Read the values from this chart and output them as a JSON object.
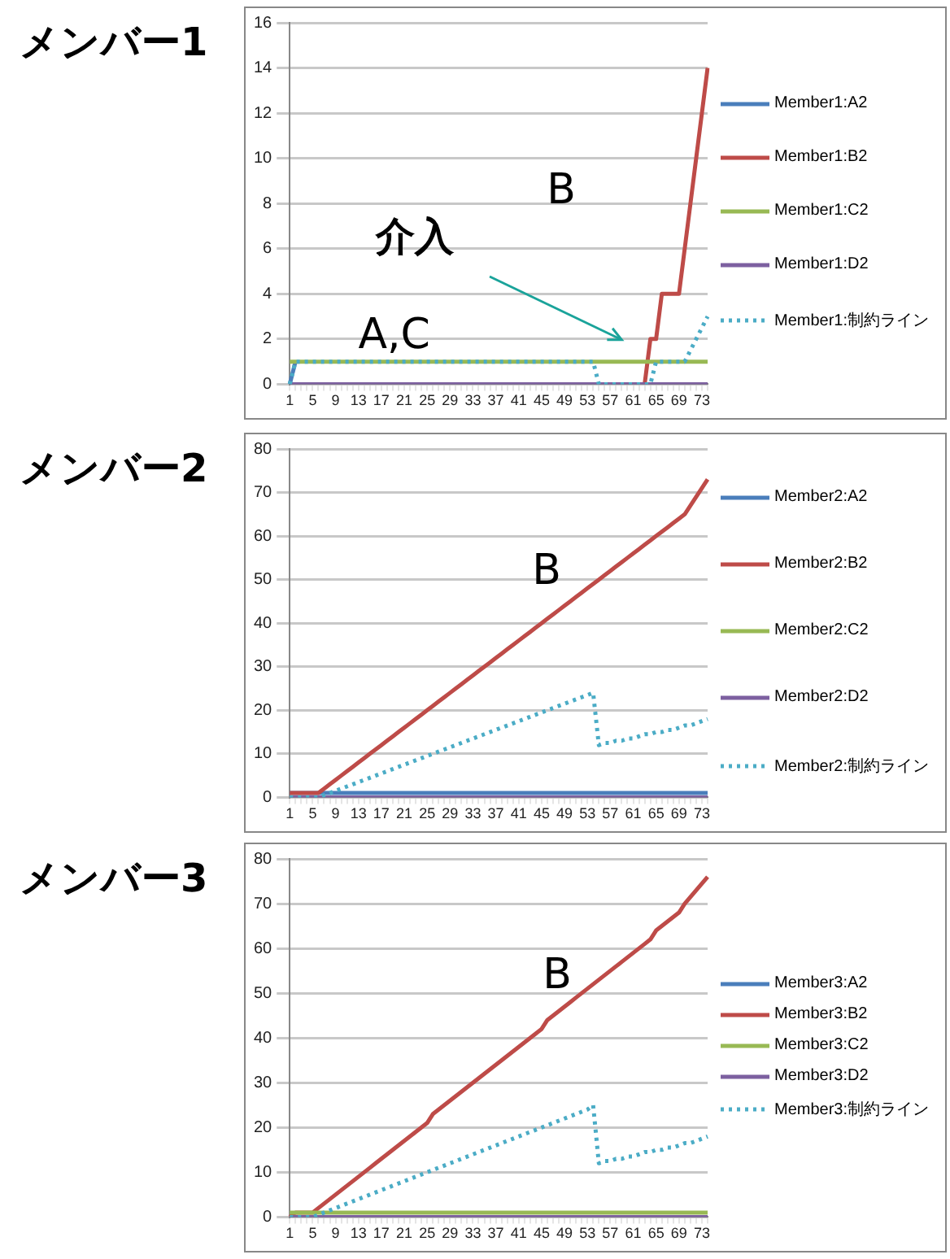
{
  "chart_data": [
    {
      "type": "line",
      "title": "メンバー1",
      "categories": [
        "1",
        null,
        null,
        null,
        "5",
        null,
        null,
        null,
        "9",
        null,
        null,
        null,
        "13",
        null,
        null,
        null,
        "17",
        null,
        null,
        null,
        "21",
        null,
        null,
        null,
        "25",
        null,
        null,
        null,
        "29",
        null,
        null,
        null,
        "33",
        null,
        null,
        null,
        "37",
        null,
        null,
        null,
        "41",
        null,
        null,
        null,
        "45",
        null,
        null,
        null,
        "49",
        null,
        null,
        null,
        "53",
        null,
        null,
        null,
        "57",
        null,
        null,
        null,
        "61",
        null,
        null,
        null,
        "65",
        null,
        null,
        null,
        "69",
        null,
        null,
        null,
        "73",
        null
      ],
      "series": [
        {
          "name": "Member1:A2",
          "color": "#4a7ebb",
          "values": [
            0,
            1,
            null,
            null,
            null,
            null,
            null,
            null,
            null,
            null,
            null,
            null,
            null,
            null,
            null,
            null,
            null,
            null,
            null,
            null,
            null,
            null,
            null,
            null,
            null,
            null,
            null,
            null,
            null,
            null,
            null,
            null,
            null,
            null,
            null,
            null,
            null,
            null,
            null,
            null,
            null,
            null,
            null,
            null,
            null,
            null,
            null,
            null,
            null,
            null,
            null,
            null,
            null,
            null,
            null,
            null,
            null,
            null,
            null,
            null,
            null,
            null,
            null,
            null,
            null,
            null,
            null,
            null,
            null,
            null,
            null,
            null,
            null,
            null
          ]
        },
        {
          "name": "Member1:B2",
          "color": "#be4b48",
          "values": [
            null,
            null,
            null,
            null,
            null,
            null,
            null,
            null,
            null,
            null,
            null,
            null,
            null,
            null,
            null,
            null,
            null,
            null,
            null,
            null,
            null,
            null,
            null,
            null,
            null,
            null,
            null,
            null,
            null,
            null,
            null,
            null,
            null,
            null,
            null,
            null,
            null,
            null,
            null,
            null,
            null,
            null,
            null,
            null,
            null,
            null,
            null,
            null,
            null,
            null,
            null,
            null,
            null,
            null,
            null,
            null,
            null,
            null,
            null,
            null,
            null,
            null,
            0,
            2,
            2,
            4,
            4,
            4,
            4,
            6,
            8,
            10,
            12,
            14
          ]
        },
        {
          "name": "Member1:C2",
          "color": "#98b954",
          "values": [
            1,
            1,
            1,
            1,
            1,
            1,
            1,
            1,
            1,
            1,
            1,
            1,
            1,
            1,
            1,
            1,
            1,
            1,
            1,
            1,
            1,
            1,
            1,
            1,
            1,
            1,
            1,
            1,
            1,
            1,
            1,
            1,
            1,
            1,
            1,
            1,
            1,
            1,
            1,
            1,
            1,
            1,
            1,
            1,
            1,
            1,
            1,
            1,
            1,
            1,
            1,
            1,
            1,
            1,
            1,
            1,
            1,
            1,
            1,
            1,
            1,
            1,
            1,
            1,
            1,
            1,
            1,
            1,
            1,
            1,
            1,
            1,
            1,
            1
          ]
        },
        {
          "name": "Member1:D2",
          "color": "#7d60a0",
          "values": [
            0,
            0,
            0,
            0,
            0,
            0,
            0,
            0,
            0,
            0,
            0,
            0,
            0,
            0,
            0,
            0,
            0,
            0,
            0,
            0,
            0,
            0,
            0,
            0,
            0,
            0,
            0,
            0,
            0,
            0,
            0,
            0,
            0,
            0,
            0,
            0,
            0,
            0,
            0,
            0,
            0,
            0,
            0,
            0,
            0,
            0,
            0,
            0,
            0,
            0,
            0,
            0,
            0,
            0,
            0,
            0,
            0,
            0,
            0,
            0,
            0,
            0,
            0,
            0,
            0,
            0,
            0,
            0,
            0,
            0,
            0,
            0,
            0,
            0
          ]
        },
        {
          "name": "Member1:制約ライン",
          "color": "#4bacc6",
          "line_style": "dotted",
          "values": [
            0,
            1,
            1,
            1,
            1,
            1,
            1,
            1,
            1,
            1,
            1,
            1,
            1,
            1,
            1,
            1,
            1,
            1,
            1,
            1,
            1,
            1,
            1,
            1,
            1,
            1,
            1,
            1,
            1,
            1,
            1,
            1,
            1,
            1,
            1,
            1,
            1,
            1,
            1,
            1,
            1,
            1,
            1,
            1,
            1,
            1,
            1,
            1,
            1,
            1,
            1,
            1,
            1,
            1,
            0,
            0,
            0,
            0,
            0,
            0,
            0,
            0,
            0,
            0,
            1,
            1,
            1,
            1,
            1,
            1,
            1.5,
            2,
            2.5,
            3
          ]
        }
      ],
      "ylim": [
        0,
        16
      ],
      "yticks": [
        0,
        2,
        4,
        6,
        8,
        10,
        12,
        14,
        16
      ],
      "grid": "y",
      "legend": "right",
      "marker": "none",
      "annotations": [
        "B",
        "介入",
        "A,C"
      ]
    },
    {
      "type": "line",
      "title": "メンバー2",
      "categories": [
        "1",
        null,
        null,
        null,
        "5",
        null,
        null,
        null,
        "9",
        null,
        null,
        null,
        "13",
        null,
        null,
        null,
        "17",
        null,
        null,
        null,
        "21",
        null,
        null,
        null,
        "25",
        null,
        null,
        null,
        "29",
        null,
        null,
        null,
        "33",
        null,
        null,
        null,
        "37",
        null,
        null,
        null,
        "41",
        null,
        null,
        null,
        "45",
        null,
        null,
        null,
        "49",
        null,
        null,
        null,
        "53",
        null,
        null,
        null,
        "57",
        null,
        null,
        null,
        "61",
        null,
        null,
        null,
        "65",
        null,
        null,
        null,
        "69",
        null,
        null,
        null,
        "73",
        null
      ],
      "series": [
        {
          "name": "Member2:A2",
          "color": "#4a7ebb",
          "values": [
            1,
            1,
            1,
            1,
            1,
            1,
            1,
            1,
            1,
            1,
            1,
            1,
            1,
            1,
            1,
            1,
            1,
            1,
            1,
            1,
            1,
            1,
            1,
            1,
            1,
            1,
            1,
            1,
            1,
            1,
            1,
            1,
            1,
            1,
            1,
            1,
            1,
            1,
            1,
            1,
            1,
            1,
            1,
            1,
            1,
            1,
            1,
            1,
            1,
            1,
            1,
            1,
            1,
            1,
            1,
            1,
            1,
            1,
            1,
            1,
            1,
            1,
            1,
            1,
            1,
            1,
            1,
            1,
            1,
            1,
            1,
            1,
            1,
            1
          ]
        },
        {
          "name": "Member2:B2",
          "color": "#be4b48",
          "values": [
            1,
            1,
            1,
            1,
            1,
            1,
            2,
            3,
            4,
            5,
            6,
            7,
            8,
            9,
            10,
            11,
            12,
            13,
            14,
            15,
            16,
            17,
            18,
            19,
            20,
            21,
            22,
            23,
            24,
            25,
            26,
            27,
            28,
            29,
            30,
            31,
            32,
            33,
            34,
            35,
            36,
            37,
            38,
            39,
            40,
            41,
            42,
            43,
            44,
            45,
            46,
            47,
            48,
            49,
            50,
            51,
            52,
            53,
            54,
            55,
            56,
            57,
            58,
            59,
            60,
            61,
            62,
            63,
            64,
            65,
            67,
            69,
            71,
            73
          ]
        },
        {
          "name": "Member2:C2",
          "color": "#98b954",
          "values": [
            null,
            null,
            null,
            null,
            null,
            null,
            null,
            null,
            null,
            null,
            null,
            null,
            null,
            null,
            null,
            null,
            null,
            null,
            null,
            null,
            null,
            null,
            null,
            null,
            null,
            null,
            null,
            null,
            null,
            null,
            null,
            null,
            null,
            null,
            null,
            null,
            null,
            null,
            null,
            null,
            null,
            null,
            null,
            null,
            null,
            null,
            null,
            null,
            null,
            null,
            null,
            null,
            null,
            null,
            null,
            null,
            null,
            null,
            null,
            null,
            null,
            null,
            null,
            null,
            null,
            null,
            null,
            null,
            null,
            null,
            null,
            null,
            null,
            null
          ]
        },
        {
          "name": "Member2:D2",
          "color": "#7d60a0",
          "values": [
            0,
            0,
            0,
            0,
            0,
            0,
            0,
            0,
            0,
            0,
            0,
            0,
            0,
            0,
            0,
            0,
            0,
            0,
            0,
            0,
            0,
            0,
            0,
            0,
            0,
            0,
            0,
            0,
            0,
            0,
            0,
            0,
            0,
            0,
            0,
            0,
            0,
            0,
            0,
            0,
            0,
            0,
            0,
            0,
            0,
            0,
            0,
            0,
            0,
            0,
            0,
            0,
            0,
            0,
            0,
            0,
            0,
            0,
            0,
            0,
            0,
            0,
            0,
            0,
            0,
            0,
            0,
            0,
            0,
            0,
            0,
            0,
            0,
            0
          ]
        },
        {
          "name": "Member2:制約ライン",
          "color": "#4bacc6",
          "line_style": "dotted",
          "values": [
            0,
            0,
            0,
            0,
            0,
            0,
            0.5,
            1,
            1.5,
            2,
            2.5,
            3,
            3.5,
            4,
            4.5,
            5,
            5.5,
            6,
            6.5,
            7,
            7.5,
            8,
            8.5,
            9,
            9.5,
            10,
            10.5,
            11,
            11.5,
            12,
            12.5,
            13,
            13.5,
            14,
            14.5,
            15,
            15.5,
            16,
            16.5,
            17,
            17.5,
            18,
            18.5,
            19,
            19.5,
            20,
            20.5,
            21,
            21.5,
            22,
            22.5,
            23,
            23.5,
            24,
            12,
            12.5,
            12.5,
            13,
            13,
            13.5,
            13.5,
            14,
            14.5,
            14.5,
            15,
            15,
            15.5,
            15.5,
            16,
            16.5,
            16.5,
            17,
            17.5,
            18
          ]
        }
      ],
      "ylim": [
        0,
        80
      ],
      "yticks": [
        0,
        10,
        20,
        30,
        40,
        50,
        60,
        70,
        80
      ],
      "grid": "y",
      "legend": "right",
      "marker": "none",
      "annotations": [
        "B"
      ]
    },
    {
      "type": "line",
      "title": "メンバー3",
      "categories": [
        "1",
        null,
        null,
        null,
        "5",
        null,
        null,
        null,
        "9",
        null,
        null,
        null,
        "13",
        null,
        null,
        null,
        "17",
        null,
        null,
        null,
        "21",
        null,
        null,
        null,
        "25",
        null,
        null,
        null,
        "29",
        null,
        null,
        null,
        "33",
        null,
        null,
        null,
        "37",
        null,
        null,
        null,
        "41",
        null,
        null,
        null,
        "45",
        null,
        null,
        null,
        "49",
        null,
        null,
        null,
        "53",
        null,
        null,
        null,
        "57",
        null,
        null,
        null,
        "61",
        null,
        null,
        null,
        "65",
        null,
        null,
        null,
        "69",
        null,
        null,
        null,
        "73",
        null
      ],
      "series": [
        {
          "name": "Member3:A2",
          "color": "#4a7ebb",
          "values": [
            null,
            null,
            null,
            null,
            null,
            null,
            null,
            null,
            null,
            null,
            null,
            null,
            null,
            null,
            null,
            null,
            null,
            null,
            null,
            null,
            null,
            null,
            null,
            null,
            null,
            null,
            null,
            null,
            null,
            null,
            null,
            null,
            null,
            null,
            null,
            null,
            null,
            null,
            null,
            null,
            null,
            null,
            null,
            null,
            null,
            null,
            null,
            null,
            null,
            null,
            null,
            null,
            null,
            null,
            null,
            null,
            null,
            null,
            null,
            null,
            null,
            null,
            null,
            null,
            null,
            null,
            null,
            null,
            null,
            null,
            null,
            null,
            null,
            null
          ]
        },
        {
          "name": "Member3:B2",
          "color": "#be4b48",
          "values": [
            0,
            1,
            1,
            1,
            1,
            2,
            3,
            4,
            5,
            6,
            7,
            8,
            9,
            10,
            11,
            12,
            13,
            14,
            15,
            16,
            17,
            18,
            19,
            20,
            21,
            23,
            24,
            25,
            26,
            27,
            28,
            29,
            30,
            31,
            32,
            33,
            34,
            35,
            36,
            37,
            38,
            39,
            40,
            41,
            42,
            44,
            45,
            46,
            47,
            48,
            49,
            50,
            51,
            52,
            53,
            54,
            55,
            56,
            57,
            58,
            59,
            60,
            61,
            62,
            64,
            65,
            66,
            67,
            68,
            70,
            71.5,
            73,
            74.5,
            76
          ]
        },
        {
          "name": "Member3:C2",
          "color": "#98b954",
          "values": [
            1,
            1,
            1,
            1,
            1,
            1,
            1,
            1,
            1,
            1,
            1,
            1,
            1,
            1,
            1,
            1,
            1,
            1,
            1,
            1,
            1,
            1,
            1,
            1,
            1,
            1,
            1,
            1,
            1,
            1,
            1,
            1,
            1,
            1,
            1,
            1,
            1,
            1,
            1,
            1,
            1,
            1,
            1,
            1,
            1,
            1,
            1,
            1,
            1,
            1,
            1,
            1,
            1,
            1,
            1,
            1,
            1,
            1,
            1,
            1,
            1,
            1,
            1,
            1,
            1,
            1,
            1,
            1,
            1,
            1,
            1,
            1,
            1,
            1
          ]
        },
        {
          "name": "Member3:D2",
          "color": "#7d60a0",
          "values": [
            0,
            0,
            0,
            0,
            0,
            0,
            0,
            0,
            0,
            0,
            0,
            0,
            0,
            0,
            0,
            0,
            0,
            0,
            0,
            0,
            0,
            0,
            0,
            0,
            0,
            0,
            0,
            0,
            0,
            0,
            0,
            0,
            0,
            0,
            0,
            0,
            0,
            0,
            0,
            0,
            0,
            0,
            0,
            0,
            0,
            0,
            0,
            0,
            0,
            0,
            0,
            0,
            0,
            0,
            0,
            0,
            0,
            0,
            0,
            0,
            0,
            0,
            0,
            0,
            0,
            0,
            0,
            0,
            0,
            0,
            0,
            0,
            0,
            0
          ]
        },
        {
          "name": "Member3:制約ライン",
          "color": "#4bacc6",
          "line_style": "dotted",
          "values": [
            0,
            0,
            0,
            0,
            0,
            0.5,
            1,
            1.5,
            2,
            2.5,
            3,
            3.5,
            4,
            4.5,
            5,
            5.5,
            6,
            6.5,
            7,
            7.5,
            8,
            8.5,
            9,
            9.5,
            10,
            10.5,
            11,
            11.5,
            12,
            12.5,
            13,
            13.5,
            14,
            14.5,
            15,
            15.5,
            16,
            16.5,
            17,
            17.5,
            18,
            18.5,
            19,
            19.5,
            20,
            20.5,
            21,
            21.5,
            22,
            22.5,
            23,
            23.5,
            24,
            25,
            12,
            12.5,
            12.5,
            13,
            13,
            13.5,
            13.5,
            14,
            14.5,
            14.5,
            15,
            15,
            15.5,
            15.5,
            16,
            16.5,
            16.5,
            17,
            17.5,
            18
          ]
        }
      ],
      "ylim": [
        0,
        80
      ],
      "yticks": [
        0,
        10,
        20,
        30,
        40,
        50,
        60,
        70,
        80
      ],
      "grid": "y",
      "legend": "right",
      "marker": "none",
      "annotations": [
        "B"
      ]
    }
  ]
}
